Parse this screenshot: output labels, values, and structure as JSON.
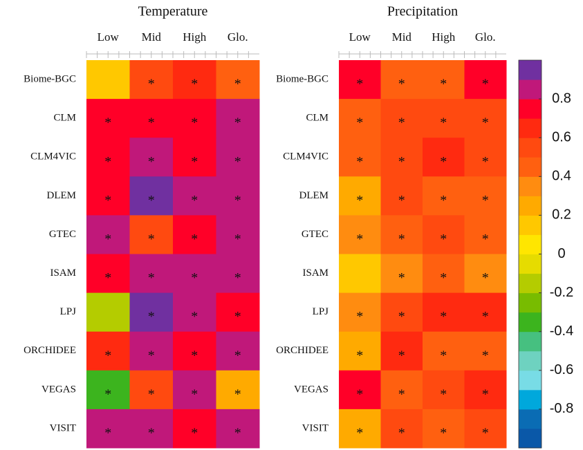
{
  "chart_data": [
    {
      "type": "heatmap",
      "title": "Temperature",
      "x": [
        "Low",
        "Mid",
        "High",
        "Glo."
      ],
      "y": [
        "Biome-BGC",
        "CLM",
        "CLM4VIC",
        "DLEM",
        "GTEC",
        "ISAM",
        "LPJ",
        "ORCHIDEE",
        "VEGAS",
        "VISIT"
      ],
      "values": [
        [
          0.15,
          0.55,
          0.65,
          0.45
        ],
        [
          0.75,
          0.75,
          0.75,
          0.85
        ],
        [
          0.75,
          0.85,
          0.75,
          0.85
        ],
        [
          0.75,
          0.95,
          0.85,
          0.85
        ],
        [
          0.85,
          0.55,
          0.75,
          0.85
        ],
        [
          0.75,
          0.85,
          0.85,
          0.85
        ],
        [
          -0.15,
          0.95,
          0.85,
          0.75
        ],
        [
          0.65,
          0.85,
          0.75,
          0.85
        ],
        [
          -0.35,
          0.55,
          0.85,
          0.25
        ],
        [
          0.85,
          0.85,
          0.75,
          0.85
        ]
      ],
      "significance": [
        [
          null,
          "*",
          "*",
          "*"
        ],
        [
          "*",
          "*",
          "*",
          "*"
        ],
        [
          "*",
          "*",
          "*",
          "*"
        ],
        [
          "*",
          "*",
          "*",
          "*"
        ],
        [
          "*",
          "*",
          "*",
          "*"
        ],
        [
          "*",
          "*",
          "*",
          "*"
        ],
        [
          null,
          "*",
          "*",
          "*"
        ],
        [
          "*",
          "*",
          "*",
          "*"
        ],
        [
          "*",
          "*",
          "*",
          "*"
        ],
        [
          "*",
          "*",
          "*",
          "*"
        ]
      ]
    },
    {
      "type": "heatmap",
      "title": "Precipitation",
      "x": [
        "Low",
        "Mid",
        "High",
        "Glo."
      ],
      "y": [
        "Biome-BGC",
        "CLM",
        "CLM4VIC",
        "DLEM",
        "GTEC",
        "ISAM",
        "LPJ",
        "ORCHIDEE",
        "VEGAS",
        "VISIT"
      ],
      "values": [
        [
          0.75,
          0.45,
          0.45,
          0.75
        ],
        [
          0.45,
          0.55,
          0.55,
          0.55
        ],
        [
          0.45,
          0.55,
          0.65,
          0.55
        ],
        [
          0.25,
          0.55,
          0.45,
          0.45
        ],
        [
          0.35,
          0.45,
          0.55,
          0.45
        ],
        [
          0.15,
          0.35,
          0.45,
          0.35
        ],
        [
          0.35,
          0.55,
          0.65,
          0.65
        ],
        [
          0.25,
          0.65,
          0.45,
          0.45
        ],
        [
          0.75,
          0.45,
          0.55,
          0.65
        ],
        [
          0.25,
          0.55,
          0.45,
          0.55
        ]
      ],
      "significance": [
        [
          "*",
          "*",
          "*",
          "*"
        ],
        [
          "*",
          "*",
          "*",
          "*"
        ],
        [
          "*",
          "*",
          "*",
          "*"
        ],
        [
          "*",
          "*",
          "*",
          "*"
        ],
        [
          "*",
          "*",
          "*",
          "*"
        ],
        [
          null,
          "*",
          "*",
          "*"
        ],
        [
          "*",
          "*",
          "*",
          "*"
        ],
        [
          "*",
          "*",
          "*",
          "*"
        ],
        [
          "*",
          "*",
          "*",
          "*"
        ],
        [
          "*",
          "*",
          "*",
          "*"
        ]
      ]
    }
  ],
  "colorbar": {
    "vlim": [
      -1,
      1
    ],
    "colors": [
      "#0a58a8",
      "#0a6cb4",
      "#00a8dc",
      "#78dce6",
      "#6ed2c0",
      "#46c080",
      "#3cb41e",
      "#78bc00",
      "#b4cc00",
      "#e6dc00",
      "#ffe600",
      "#ffc800",
      "#ffaa00",
      "#ff8c10",
      "#ff6010",
      "#ff4a10",
      "#ff2a10",
      "#ff0028",
      "#c0187a",
      "#7030a0"
    ],
    "ticks": [
      -0.8,
      -0.6,
      -0.4,
      -0.2,
      0,
      0.2,
      0.4,
      0.6,
      0.8
    ]
  }
}
